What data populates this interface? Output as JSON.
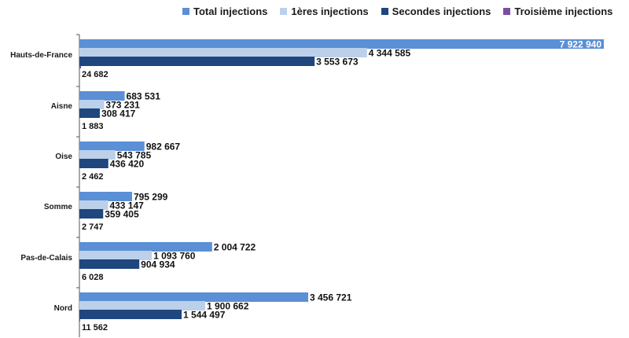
{
  "chart_data": {
    "type": "bar",
    "orientation": "horizontal",
    "categories": [
      "Hauts-de-France",
      "Aisne",
      "Oise",
      "Somme",
      "Pas-de-Calais",
      "Nord"
    ],
    "series": [
      {
        "name": "Total injections",
        "color": "#5b8fd6",
        "values": [
          7922940,
          683531,
          982667,
          795299,
          2004722,
          3456721
        ],
        "labels": [
          "7 922 940",
          "683 531",
          "982 667",
          "795 299",
          "2 004 722",
          "3 456 721"
        ]
      },
      {
        "name": "1ères injections",
        "color": "#bcd0ea",
        "values": [
          4344585,
          373231,
          543785,
          433147,
          1093760,
          1900662
        ],
        "labels": [
          "4 344 585",
          "373 231",
          "543 785",
          "433 147",
          "1 093 760",
          "1 900 662"
        ]
      },
      {
        "name": "Secondes injections",
        "color": "#1f477e",
        "values": [
          3553673,
          308417,
          436420,
          359405,
          904934,
          1544497
        ],
        "labels": [
          "3 553 673",
          "308 417",
          "436 420",
          "359 405",
          "904 934",
          "1 544 497"
        ]
      },
      {
        "name": "Troisième injections",
        "color": "#7b4fa0",
        "values": [
          24682,
          1883,
          2462,
          2747,
          6028,
          11562
        ],
        "labels": [
          "24 682",
          "1 883",
          "2 462",
          "2 747",
          "6 028",
          "11 562"
        ]
      }
    ],
    "xlim": [
      0,
      7922940
    ],
    "legend": "top",
    "grid": false,
    "title": "",
    "xlabel": "",
    "ylabel": ""
  }
}
